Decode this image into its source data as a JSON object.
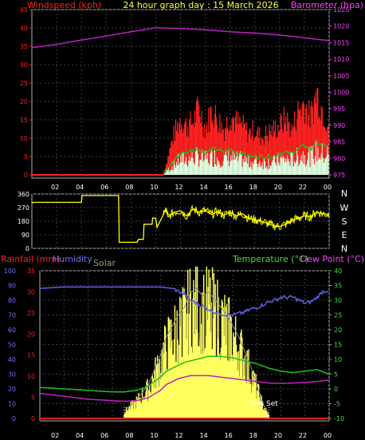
{
  "header": {
    "left_label": "Windspeed (kph)",
    "title": "24 hour graph day : 15 March 2026",
    "right_label": "Barometer (hpa)"
  },
  "direction_labels": [
    "N",
    "W",
    "S",
    "E",
    "N"
  ],
  "bottom_header": {
    "rainfall_label": "Rainfall (mm)",
    "humidity_label": "Humidity",
    "solar_label": "Solar",
    "temperature_label": "Temperature (°C)",
    "dewpoint_label": "Dew Point (°C)"
  },
  "sun_set_label": "Sun Set",
  "x_ticks": [
    "02",
    "04",
    "06",
    "08",
    "10",
    "12",
    "14",
    "16",
    "18",
    "20",
    "22",
    "00"
  ],
  "colors": {
    "wind": "#ff2020",
    "gust_green": "#20c020",
    "wind_white": "#e0ffe0",
    "barometer": "#c020c0",
    "direction": "#ffff00",
    "rain": "#e02020",
    "humidity": "#6060e0",
    "temperature": "#20c020",
    "dewpoint": "#c020c0",
    "solar": "#ffff60",
    "solar_label": "#a0a070",
    "grid": "#404040"
  },
  "chart_data": [
    {
      "type": "line",
      "title": "24 hour graph day : 15 March 2026",
      "x_unit": "hour",
      "xlim": [
        0,
        24
      ],
      "left_axis": {
        "label": "Windspeed (kph)",
        "ylim": [
          0,
          45
        ],
        "ticks": [
          "0",
          "5",
          "10",
          "15",
          "20",
          "25",
          "30",
          "35",
          "40",
          "45"
        ]
      },
      "right_axis": {
        "label": "Barometer (hpa)",
        "ylim": [
          975,
          1025
        ],
        "ticks": [
          "975",
          "980",
          "985",
          "990",
          "995",
          "1000",
          "1005",
          "1010",
          "1015",
          "1020",
          "1025"
        ]
      },
      "series": [
        {
          "name": "Windspeed (kph)",
          "x": [
            0,
            10.6,
            11,
            11.5,
            12,
            12.5,
            13,
            13.5,
            14,
            14.5,
            15,
            15.5,
            16,
            16.5,
            17,
            17.5,
            18,
            18.5,
            19,
            19.5,
            20,
            20.5,
            21,
            21.5,
            22,
            22.5,
            23,
            23.5,
            24
          ],
          "y": [
            0,
            0,
            5,
            11,
            15,
            13,
            14,
            18,
            12,
            17,
            15,
            12,
            16,
            14,
            13,
            11,
            12,
            10,
            11,
            12,
            13,
            15,
            12,
            17,
            19,
            15,
            22,
            17,
            13
          ]
        },
        {
          "name": "Wind average",
          "x": [
            0,
            10.6,
            11,
            11.5,
            12,
            12.5,
            13,
            13.5,
            14,
            14.5,
            15,
            15.5,
            16,
            16.5,
            17,
            17.5,
            18,
            18.5,
            19,
            19.5,
            20,
            20.5,
            21,
            21.5,
            22,
            22.5,
            23,
            23.5,
            24
          ],
          "y": [
            0,
            0,
            2,
            4,
            6,
            6,
            7,
            7,
            6,
            7,
            7,
            6,
            7,
            6,
            6,
            5,
            5,
            5,
            5,
            5,
            6,
            6,
            6,
            7,
            8,
            7,
            9,
            8,
            8
          ]
        },
        {
          "name": "Barometer (hpa)",
          "x": [
            0,
            2,
            4,
            6,
            8,
            9,
            10,
            11,
            12,
            13,
            14,
            15,
            16,
            17,
            18,
            19,
            20,
            21,
            22,
            23,
            24
          ],
          "y": [
            1013.5,
            1014.5,
            1015.8,
            1017.0,
            1018.3,
            1018.9,
            1019.5,
            1019.4,
            1019.3,
            1019.1,
            1018.9,
            1018.6,
            1018.3,
            1018.1,
            1017.9,
            1017.6,
            1017.3,
            1016.9,
            1016.5,
            1016.0,
            1015.6
          ]
        }
      ]
    },
    {
      "type": "line",
      "x_unit": "hour",
      "xlim": [
        0,
        24
      ],
      "left_axis": {
        "label": "",
        "ylim": [
          0,
          360
        ],
        "ticks": [
          "0",
          "90",
          "180",
          "270",
          "360"
        ]
      },
      "series": [
        {
          "name": "Wind direction",
          "x": [
            0,
            0.1,
            4,
            4.05,
            7,
            7.05,
            8.5,
            8.6,
            9,
            9.05,
            9.7,
            9.75,
            10,
            10.1,
            10.6,
            10.8,
            11,
            11.5,
            12,
            12.5,
            13,
            13.5,
            14,
            14.5,
            15,
            15.5,
            16,
            16.5,
            17,
            17.5,
            18,
            18.5,
            19,
            19.5,
            20,
            20.5,
            21,
            21.5,
            22,
            22.5,
            23,
            23.5,
            24
          ],
          "y": [
            300,
            305,
            305,
            350,
            350,
            40,
            40,
            60,
            60,
            160,
            160,
            200,
            200,
            140,
            220,
            260,
            210,
            240,
            250,
            215,
            260,
            240,
            250,
            225,
            245,
            220,
            240,
            215,
            230,
            200,
            190,
            180,
            165,
            150,
            145,
            160,
            185,
            200,
            215,
            210,
            240,
            230,
            225
          ]
        }
      ]
    },
    {
      "type": "line",
      "x_unit": "hour",
      "xlim": [
        0,
        24
      ],
      "axes": {
        "humidity": {
          "label": "Humidity",
          "ylim": [
            0,
            100
          ],
          "ticks": [
            "0",
            "10",
            "20",
            "30",
            "40",
            "50",
            "60",
            "70",
            "80",
            "90",
            "100"
          ]
        },
        "rainfall": {
          "label": "Rainfall (mm)",
          "ylim": [
            0,
            35
          ],
          "ticks": [
            "0",
            "5",
            "10",
            "15",
            "20",
            "25",
            "30",
            "35"
          ]
        },
        "temperature": {
          "label": "Temperature (°C)",
          "ylim": [
            -10,
            40
          ],
          "ticks": [
            "-10",
            "-5",
            "0",
            "5",
            "10",
            "15",
            "20",
            "25",
            "30",
            "35",
            "40"
          ]
        }
      },
      "series": [
        {
          "name": "Humidity",
          "x": [
            0,
            2,
            4,
            6,
            8,
            9,
            10,
            11,
            12,
            12.5,
            13,
            13.5,
            14,
            14.5,
            15,
            15.5,
            16,
            16.5,
            17,
            17.5,
            18,
            18.5,
            19,
            19.5,
            20,
            21,
            21.5,
            22,
            22.5,
            23,
            23.5,
            24
          ],
          "y": [
            88,
            89,
            89,
            89,
            89,
            89,
            89,
            88,
            84,
            80,
            78,
            76,
            74,
            72,
            71,
            70,
            70,
            71,
            72,
            74,
            75,
            77,
            79,
            80,
            82,
            82,
            80,
            78,
            79,
            82,
            86,
            87
          ]
        },
        {
          "name": "Temperature (°C)",
          "x": [
            0,
            2,
            4,
            6,
            7,
            8,
            9,
            10,
            10.5,
            11,
            11.5,
            12,
            12.5,
            13,
            13.5,
            14,
            15,
            16,
            17,
            18,
            19,
            20,
            21,
            22,
            23,
            24
          ],
          "y": [
            0.5,
            0,
            -0.5,
            -1,
            -1,
            -0.5,
            1,
            4,
            6,
            7,
            8,
            9,
            9.5,
            10,
            10.5,
            11,
            11,
            10.5,
            9.5,
            8.5,
            7,
            6,
            5.5,
            6,
            6.5,
            5
          ]
        },
        {
          "name": "Dew Point (°C)",
          "x": [
            0,
            2,
            4,
            6,
            7,
            8,
            9,
            10,
            10.5,
            11,
            11.5,
            12,
            12.5,
            13,
            14,
            15,
            16,
            17,
            18,
            19,
            20,
            21,
            22,
            23,
            24
          ],
          "y": [
            -1.5,
            -2.5,
            -3.5,
            -4,
            -4.2,
            -4,
            -3,
            -0.5,
            1.5,
            2.5,
            3.5,
            4,
            4.5,
            4.5,
            4.5,
            4,
            3.5,
            3,
            2.5,
            2,
            1.8,
            2,
            2.2,
            2.5,
            3
          ]
        },
        {
          "name": "Rainfall (mm)",
          "x": [
            0,
            23.8,
            24
          ],
          "y": [
            0,
            0,
            0.3
          ]
        }
      ],
      "solar": {
        "name": "Solar",
        "x": [
          7,
          8,
          9,
          10,
          10.5,
          11,
          11.5,
          12,
          12.5,
          13,
          13.5,
          14,
          14.5,
          15,
          15.5,
          16,
          16.5,
          17,
          17.5,
          18,
          18.5,
          19
        ],
        "y": [
          2,
          5,
          9,
          17,
          22,
          25,
          28,
          30,
          34,
          35,
          33,
          34,
          32,
          30,
          28,
          25,
          22,
          18,
          14,
          9,
          4,
          1
        ],
        "units_note": ""
      }
    }
  ]
}
